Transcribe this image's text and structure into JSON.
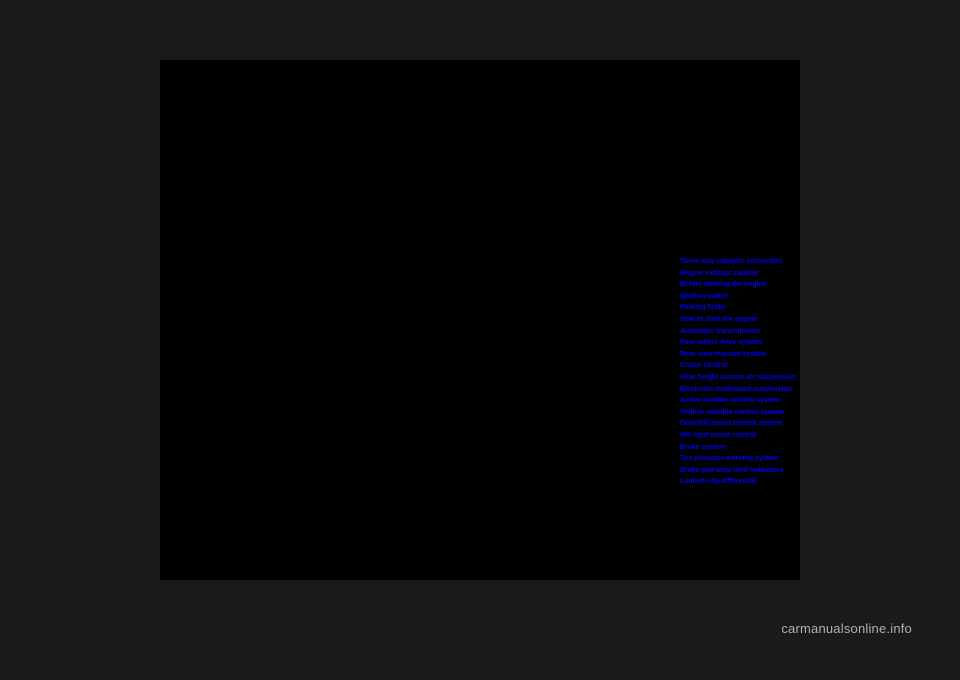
{
  "watermark": "carmanualsonline.info",
  "links": [
    "Three-way catalytic converters",
    "Engine exhaust caution",
    "Before starting the engine",
    "Ignition switch",
    "Parking brake",
    "How to start the engine",
    "Automatic transmission",
    "Four-wheel drive system",
    "Rear view monitor system",
    "Cruise control",
    "Rear height control air suspension",
    "Electronic modulated suspension",
    "Active traction control system",
    "Vehicle stability control system",
    "Downhill assist control system",
    "Hill-start assist control",
    "Brake system",
    "Tire pressure warning system",
    "Brake pad wear limit indicators",
    "Limited-slip differential"
  ]
}
